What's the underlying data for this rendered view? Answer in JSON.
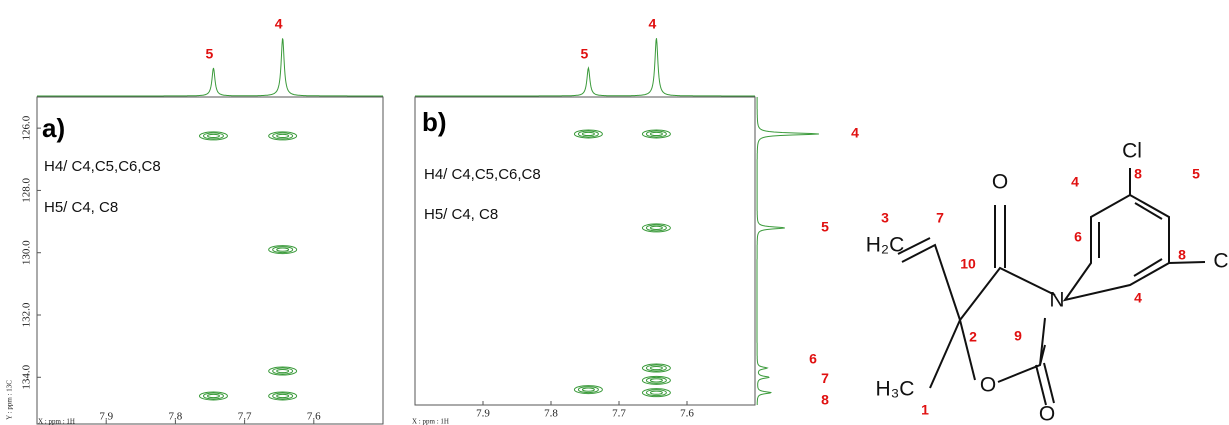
{
  "chart_data": [
    {
      "type": "contour",
      "panel_label": "a)",
      "x_label": "X : ppm : 1H",
      "y_label": "Y : ppm : 13C",
      "annotations": [
        "H4/ C4,C5,C6,C8",
        "H5/ C4, C8"
      ],
      "color": "#3a9a3a",
      "xlim": [
        8.0,
        7.5
      ],
      "ylim": [
        125.0,
        135.5
      ],
      "xticks": [
        7.9,
        7.8,
        7.7,
        7.6
      ],
      "yticks": [
        {
          "value": 126,
          "label": "126.0"
        },
        {
          "value": 128,
          "label": "128.0"
        },
        {
          "value": 130,
          "label": "130.0"
        },
        {
          "value": 132,
          "label": "132.0"
        },
        {
          "value": 134,
          "label": "134.0"
        }
      ],
      "x": [
        7.745,
        7.645,
        7.645,
        7.645,
        7.745,
        7.645
      ],
      "values": [
        126.25,
        126.25,
        129.9,
        133.8,
        134.6,
        134.6
      ],
      "projection_peaks": {
        "x": [
          7.745,
          7.645
        ],
        "labels": [
          "5",
          "4"
        ]
      }
    },
    {
      "type": "contour",
      "panel_label": "b)",
      "x_label": "X : ppm : 1H",
      "annotations": [
        "H4/ C4,C5,C6,C8",
        "H5/ C4, C8"
      ],
      "color": "#3a9a3a",
      "xlim": [
        8.0,
        7.5
      ],
      "ylim": [
        125.0,
        135.0
      ],
      "xticks": [
        7.9,
        7.8,
        7.7,
        7.6
      ],
      "x": [
        7.745,
        7.645,
        7.645,
        7.645,
        7.645,
        7.745,
        7.645
      ],
      "values": [
        126.2,
        126.2,
        129.25,
        133.8,
        134.2,
        134.5,
        134.6
      ],
      "projection_peaks": {
        "x": [
          7.745,
          7.645
        ],
        "labels": [
          "5",
          "4"
        ]
      },
      "side_peaks": {
        "y": [
          126.2,
          129.25,
          133.8,
          134.1,
          134.6
        ],
        "labels": [
          "4",
          "5",
          "6",
          "7",
          "8"
        ]
      }
    }
  ],
  "structure": {
    "atoms": [
      "Cl",
      "O",
      "H₂C",
      "H₃C",
      "N",
      "O",
      "O",
      "C"
    ],
    "numbers": [
      "8",
      "4",
      "5",
      "3",
      "7",
      "6",
      "8",
      "10",
      "2",
      "9",
      "1",
      "4"
    ]
  }
}
